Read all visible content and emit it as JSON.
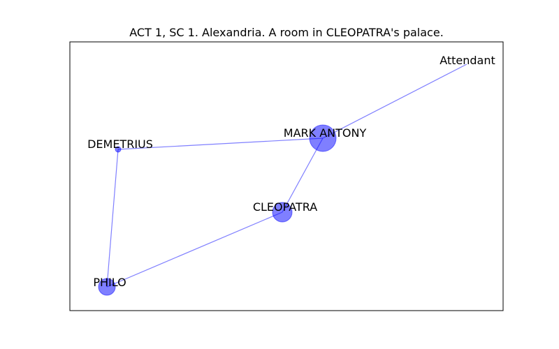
{
  "title": "ACT 1, SC 1. Alexandria. A room in CLEOPATRA's palace.",
  "colors": {
    "node_fill": "#0000ff",
    "node_opacity": 0.5,
    "edge_color": "#0000ff",
    "edge_opacity": 0.5,
    "frame": "#000000",
    "text": "#000000"
  },
  "nodes": [
    {
      "id": "mark-antony",
      "label": "MARK ANTONY",
      "weight": 5
    },
    {
      "id": "cleopatra",
      "label": "CLEOPATRA",
      "weight": 3
    },
    {
      "id": "philo",
      "label": "PHILO",
      "weight": 2
    },
    {
      "id": "demetrius",
      "label": "DEMETRIUS",
      "weight": 1
    },
    {
      "id": "attendant",
      "label": "Attendant",
      "weight": 0
    }
  ],
  "edges": [
    {
      "source": "mark-antony",
      "target": "attendant"
    },
    {
      "source": "mark-antony",
      "target": "demetrius"
    },
    {
      "source": "mark-antony",
      "target": "cleopatra"
    },
    {
      "source": "demetrius",
      "target": "philo"
    },
    {
      "source": "cleopatra",
      "target": "philo"
    }
  ]
}
